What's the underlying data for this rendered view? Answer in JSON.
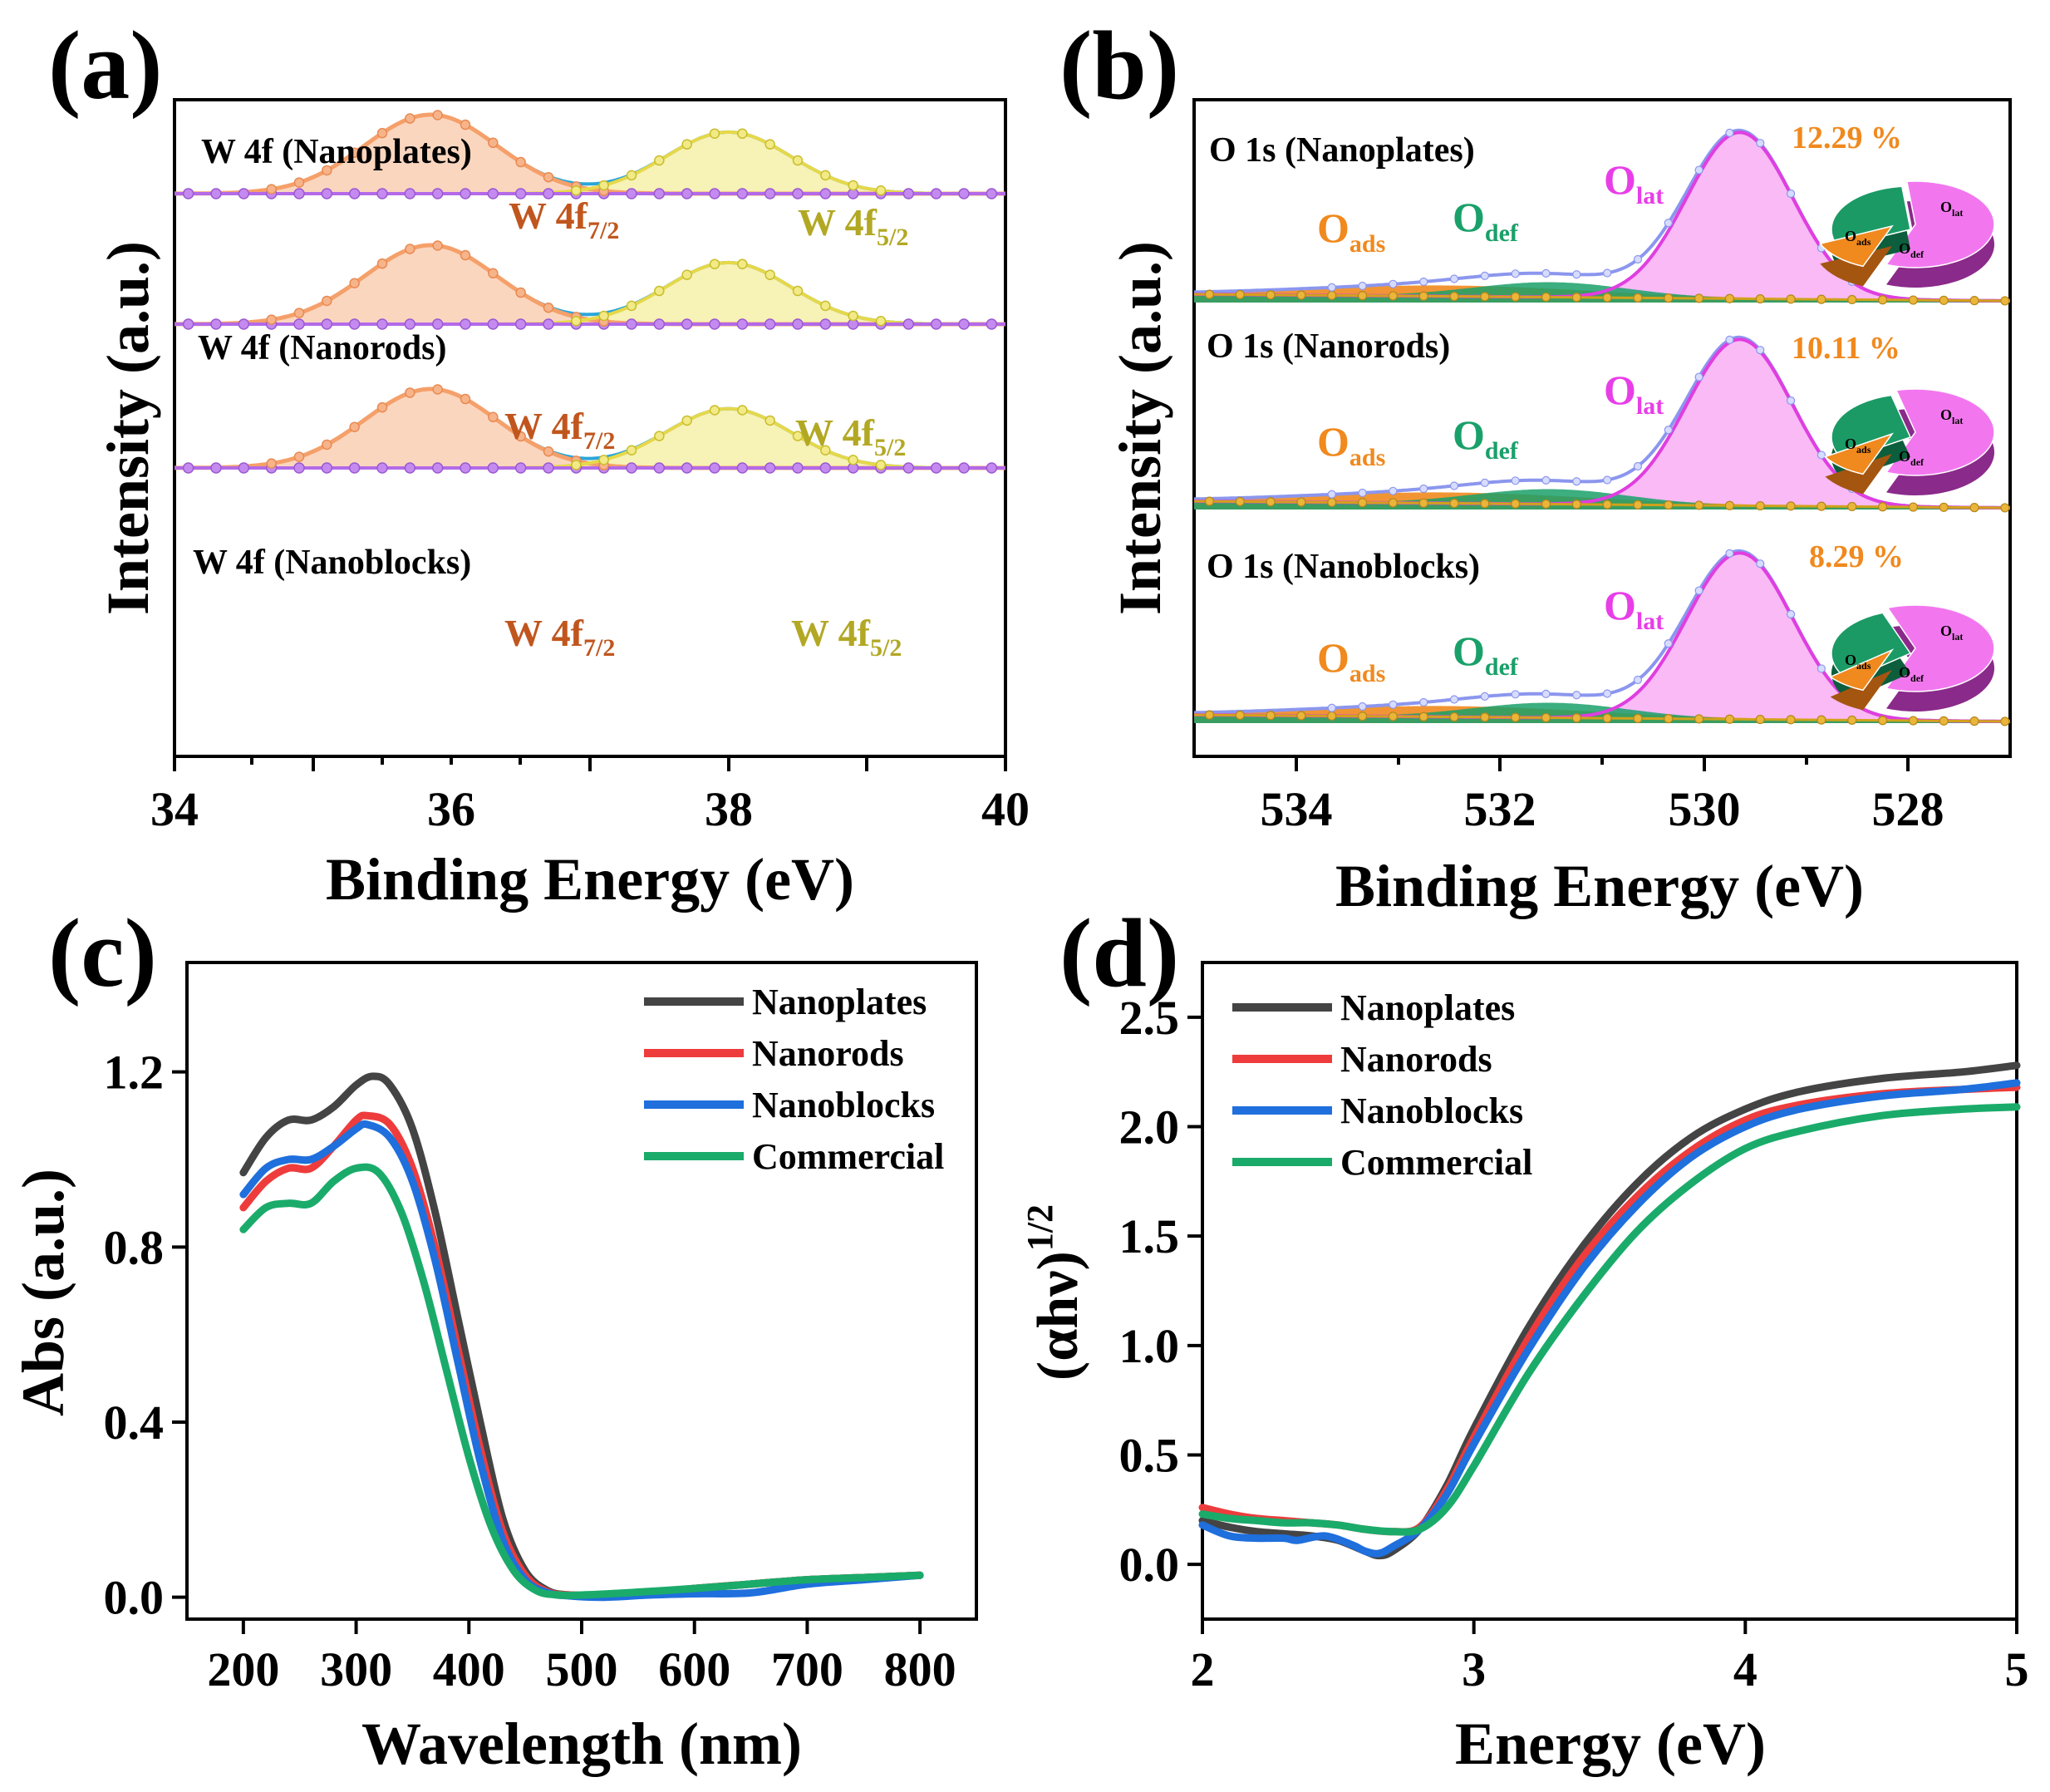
{
  "panels": {
    "a": {
      "letter": "(a)",
      "xlabel": "Binding Energy (eV)",
      "ylabel": "Intensity (a.u.)",
      "xlim": [
        34,
        40
      ],
      "xticks": [
        "34",
        "36",
        "38",
        "40"
      ],
      "spectra": [
        {
          "label": "W 4f (Nanoplates)",
          "p1_label": "W 4f",
          "p1_sub": "7/2",
          "p2_label": "W 4f",
          "p2_sub": "5/2",
          "p1_height": 1.0,
          "p2_height": 0.78
        },
        {
          "label": "W 4f (Nanorods)",
          "p1_label": "W 4f",
          "p1_sub": "7/2",
          "p2_label": "W 4f",
          "p2_sub": "5/2",
          "p1_height": 1.0,
          "p2_height": 0.78
        },
        {
          "label": "W 4f (Nanoblocks)",
          "p1_label": "W 4f",
          "p1_sub": "7/2",
          "p2_label": "W 4f",
          "p2_sub": "5/2",
          "p1_height": 1.0,
          "p2_height": 0.75
        }
      ],
      "peak_positions_eV": {
        "W4f7/2": 35.85,
        "W4f5/2": 38.0
      }
    },
    "b": {
      "letter": "(b)",
      "xlabel": "Binding Energy (eV)",
      "ylabel": "Intensity (a.u.)",
      "xlim": [
        535,
        527
      ],
      "xticks": [
        "534",
        "532",
        "530",
        "528"
      ],
      "spectra": [
        {
          "label": "O 1s (Nanoplates)",
          "percent": "12.29 %",
          "ads": "O",
          "ads_sub": "ads",
          "def": "O",
          "def_sub": "def",
          "lat": "O",
          "lat_sub": "lat"
        },
        {
          "label": "O 1s (Nanorods)",
          "percent": "10.11 %",
          "ads": "O",
          "ads_sub": "ads",
          "def": "O",
          "def_sub": "def",
          "lat": "O",
          "lat_sub": "lat"
        },
        {
          "label": "O 1s (Nanoblocks)",
          "percent": "8.29 %",
          "ads": "O",
          "ads_sub": "ads",
          "def": "O",
          "def_sub": "def",
          "lat": "O",
          "lat_sub": "lat"
        }
      ],
      "peak_positions_eV": {
        "O_lat": 529.65,
        "O_def": 531.5,
        "O_ads": 532.5
      }
    }
  },
  "chart_data": [
    {
      "panel": "c",
      "type": "line",
      "letter": "(c)",
      "title": "",
      "xlabel": "Wavelength (nm)",
      "ylabel": "Abs (a.u.)",
      "xlim": [
        150,
        850
      ],
      "ylim": [
        -0.05,
        1.45
      ],
      "xticks": [
        200,
        300,
        400,
        500,
        600,
        700,
        800
      ],
      "xtick_labels": [
        "200",
        "300",
        "400",
        "500",
        "600",
        "700",
        "800"
      ],
      "yticks": [
        0.0,
        0.4,
        0.8,
        1.2
      ],
      "ytick_labels": [
        "0.0",
        "0.4",
        "0.8",
        "1.2"
      ],
      "legend": "top-right",
      "series": [
        {
          "name": "Nanoplates",
          "color": "#444444",
          "x": [
            200,
            220,
            240,
            260,
            280,
            300,
            315,
            330,
            350,
            370,
            390,
            410,
            430,
            450,
            470,
            490,
            520,
            560,
            600,
            650,
            700,
            750,
            800
          ],
          "y": [
            0.97,
            1.05,
            1.09,
            1.09,
            1.12,
            1.17,
            1.19,
            1.17,
            1.07,
            0.88,
            0.64,
            0.4,
            0.18,
            0.06,
            0.015,
            0.005,
            0.005,
            0.01,
            0.02,
            0.03,
            0.04,
            0.045,
            0.05
          ]
        },
        {
          "name": "Nanorods",
          "color": "#ee3c3c",
          "x": [
            200,
            220,
            240,
            260,
            280,
            300,
            310,
            330,
            350,
            370,
            390,
            410,
            430,
            450,
            470,
            490,
            520,
            560,
            600,
            650,
            700,
            750,
            800
          ],
          "y": [
            0.89,
            0.95,
            0.98,
            0.98,
            1.03,
            1.09,
            1.1,
            1.08,
            0.98,
            0.8,
            0.57,
            0.34,
            0.15,
            0.05,
            0.012,
            0.005,
            0.005,
            0.01,
            0.02,
            0.03,
            0.04,
            0.045,
            0.05
          ]
        },
        {
          "name": "Nanoblocks",
          "color": "#1f6fdc",
          "x": [
            200,
            220,
            240,
            260,
            280,
            300,
            310,
            330,
            350,
            370,
            390,
            410,
            430,
            450,
            470,
            490,
            520,
            560,
            600,
            650,
            700,
            750,
            800
          ],
          "y": [
            0.92,
            0.98,
            1.0,
            1.0,
            1.03,
            1.07,
            1.08,
            1.05,
            0.95,
            0.77,
            0.54,
            0.31,
            0.13,
            0.04,
            0.01,
            0.003,
            0.0,
            0.005,
            0.008,
            0.01,
            0.03,
            0.04,
            0.05
          ]
        },
        {
          "name": "Commercial",
          "color": "#1aab6a",
          "x": [
            200,
            220,
            240,
            260,
            280,
            300,
            320,
            340,
            360,
            380,
            400,
            420,
            440,
            460,
            480,
            500,
            540,
            600,
            650,
            700,
            750,
            800
          ],
          "y": [
            0.84,
            0.89,
            0.9,
            0.9,
            0.95,
            0.98,
            0.97,
            0.88,
            0.72,
            0.52,
            0.32,
            0.16,
            0.06,
            0.015,
            0.005,
            0.005,
            0.01,
            0.02,
            0.03,
            0.04,
            0.045,
            0.05
          ]
        }
      ]
    },
    {
      "panel": "d",
      "type": "line",
      "letter": "(d)",
      "title": "",
      "xlabel": "Energy (eV)",
      "ylabel": "(αhν)",
      "ylabel_sup": "1/2",
      "xlim": [
        2,
        5
      ],
      "ylim": [
        -0.25,
        2.75
      ],
      "xticks": [
        2,
        3,
        4,
        5
      ],
      "xtick_labels": [
        "2",
        "3",
        "4",
        "5"
      ],
      "yticks": [
        0.0,
        0.5,
        1.0,
        1.5,
        2.0,
        2.5
      ],
      "ytick_labels": [
        "0.0",
        "0.5",
        "1.0",
        "1.5",
        "2.0",
        "2.5"
      ],
      "legend": "top-left",
      "series": [
        {
          "name": "Nanoplates",
          "color": "#444444",
          "x": [
            2.0,
            2.1,
            2.2,
            2.3,
            2.4,
            2.5,
            2.6,
            2.65,
            2.7,
            2.8,
            2.9,
            3.0,
            3.2,
            3.4,
            3.6,
            3.8,
            4.0,
            4.2,
            4.5,
            4.8,
            5.0
          ],
          "y": [
            0.2,
            0.17,
            0.15,
            0.14,
            0.13,
            0.11,
            0.06,
            0.04,
            0.06,
            0.16,
            0.36,
            0.62,
            1.08,
            1.45,
            1.74,
            1.95,
            2.08,
            2.16,
            2.22,
            2.25,
            2.28
          ]
        },
        {
          "name": "Nanorods",
          "color": "#ee3c3c",
          "x": [
            2.0,
            2.1,
            2.2,
            2.3,
            2.4,
            2.5,
            2.6,
            2.7,
            2.8,
            2.9,
            3.0,
            3.2,
            3.4,
            3.6,
            3.8,
            4.0,
            4.2,
            4.5,
            4.8,
            5.0
          ],
          "y": [
            0.26,
            0.23,
            0.21,
            0.2,
            0.19,
            0.18,
            0.16,
            0.15,
            0.17,
            0.34,
            0.58,
            1.03,
            1.4,
            1.68,
            1.89,
            2.03,
            2.1,
            2.15,
            2.17,
            2.18
          ]
        },
        {
          "name": "Nanoblocks",
          "color": "#1f6fdc",
          "x": [
            2.0,
            2.1,
            2.2,
            2.3,
            2.35,
            2.45,
            2.55,
            2.6,
            2.65,
            2.7,
            2.8,
            2.9,
            3.0,
            3.2,
            3.4,
            3.6,
            3.8,
            4.0,
            4.2,
            4.5,
            4.8,
            5.0
          ],
          "y": [
            0.18,
            0.13,
            0.12,
            0.12,
            0.11,
            0.13,
            0.09,
            0.06,
            0.05,
            0.08,
            0.16,
            0.32,
            0.55,
            0.98,
            1.35,
            1.64,
            1.86,
            2.0,
            2.08,
            2.14,
            2.17,
            2.2
          ]
        },
        {
          "name": "Commercial",
          "color": "#1aab6a",
          "x": [
            2.0,
            2.1,
            2.2,
            2.3,
            2.4,
            2.5,
            2.6,
            2.7,
            2.8,
            2.9,
            3.0,
            3.2,
            3.4,
            3.6,
            3.8,
            4.0,
            4.2,
            4.5,
            4.8,
            5.0
          ],
          "y": [
            0.23,
            0.21,
            0.2,
            0.19,
            0.19,
            0.18,
            0.16,
            0.15,
            0.16,
            0.26,
            0.45,
            0.87,
            1.22,
            1.52,
            1.74,
            1.9,
            1.98,
            2.05,
            2.08,
            2.09
          ]
        }
      ]
    }
  ]
}
